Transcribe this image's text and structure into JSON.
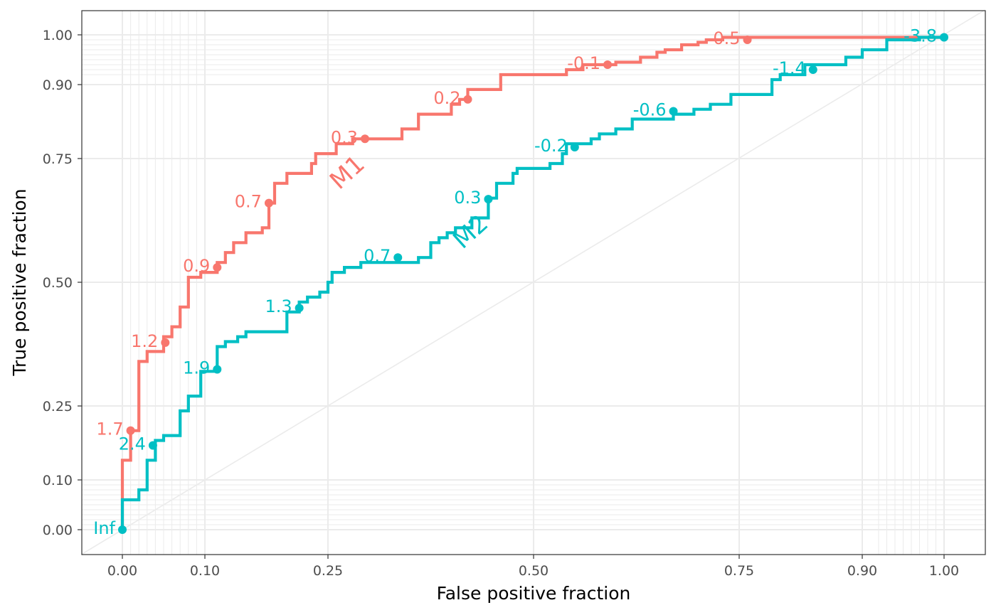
{
  "chart_data": {
    "type": "line",
    "title": "",
    "xlabel": "False positive fraction",
    "ylabel": "True positive fraction",
    "xlim": [
      -0.05,
      1.05
    ],
    "ylim": [
      -0.05,
      1.05
    ],
    "x_scale": "probit",
    "y_scale": "probit",
    "x_ticks": [
      "0.00",
      "0.10",
      "0.25",
      "0.50",
      "0.75",
      "0.90",
      "1.00"
    ],
    "y_ticks": [
      "0.00",
      "0.10",
      "0.25",
      "0.50",
      "0.75",
      "0.90",
      "1.00"
    ],
    "grid": true,
    "reference_line": "diagonal",
    "series": [
      {
        "name": "M1",
        "color": "#F8766D",
        "points": [
          [
            0.0,
            0.0
          ],
          [
            0.0,
            0.14
          ],
          [
            0.01,
            0.14
          ],
          [
            0.01,
            0.2
          ],
          [
            0.02,
            0.2
          ],
          [
            0.02,
            0.34
          ],
          [
            0.03,
            0.34
          ],
          [
            0.03,
            0.36
          ],
          [
            0.05,
            0.36
          ],
          [
            0.05,
            0.39
          ],
          [
            0.06,
            0.39
          ],
          [
            0.06,
            0.41
          ],
          [
            0.07,
            0.41
          ],
          [
            0.07,
            0.45
          ],
          [
            0.08,
            0.45
          ],
          [
            0.08,
            0.51
          ],
          [
            0.095,
            0.51
          ],
          [
            0.095,
            0.52
          ],
          [
            0.115,
            0.52
          ],
          [
            0.115,
            0.54
          ],
          [
            0.125,
            0.54
          ],
          [
            0.125,
            0.56
          ],
          [
            0.135,
            0.56
          ],
          [
            0.135,
            0.58
          ],
          [
            0.15,
            0.58
          ],
          [
            0.15,
            0.6
          ],
          [
            0.17,
            0.6
          ],
          [
            0.17,
            0.61
          ],
          [
            0.178,
            0.61
          ],
          [
            0.178,
            0.66
          ],
          [
            0.185,
            0.66
          ],
          [
            0.185,
            0.7
          ],
          [
            0.2,
            0.7
          ],
          [
            0.2,
            0.72
          ],
          [
            0.23,
            0.72
          ],
          [
            0.23,
            0.74
          ],
          [
            0.235,
            0.74
          ],
          [
            0.235,
            0.76
          ],
          [
            0.26,
            0.76
          ],
          [
            0.26,
            0.78
          ],
          [
            0.28,
            0.78
          ],
          [
            0.28,
            0.79
          ],
          [
            0.34,
            0.79
          ],
          [
            0.34,
            0.81
          ],
          [
            0.36,
            0.81
          ],
          [
            0.36,
            0.84
          ],
          [
            0.4,
            0.84
          ],
          [
            0.4,
            0.86
          ],
          [
            0.41,
            0.86
          ],
          [
            0.41,
            0.87
          ],
          [
            0.42,
            0.87
          ],
          [
            0.42,
            0.89
          ],
          [
            0.46,
            0.89
          ],
          [
            0.46,
            0.92
          ],
          [
            0.54,
            0.92
          ],
          [
            0.54,
            0.93
          ],
          [
            0.56,
            0.93
          ],
          [
            0.56,
            0.94
          ],
          [
            0.6,
            0.94
          ],
          [
            0.6,
            0.945
          ],
          [
            0.63,
            0.945
          ],
          [
            0.63,
            0.955
          ],
          [
            0.65,
            0.955
          ],
          [
            0.65,
            0.965
          ],
          [
            0.66,
            0.965
          ],
          [
            0.66,
            0.97
          ],
          [
            0.68,
            0.97
          ],
          [
            0.68,
            0.98
          ],
          [
            0.7,
            0.98
          ],
          [
            0.7,
            0.985
          ],
          [
            0.71,
            0.985
          ],
          [
            0.71,
            0.99
          ],
          [
            0.73,
            0.99
          ],
          [
            0.73,
            0.995
          ],
          [
            0.91,
            0.995
          ],
          [
            0.91,
            0.995
          ],
          [
            1.0,
            0.995
          ]
        ],
        "cutoffs": [
          {
            "label": "1.7",
            "x": 0.01,
            "y": 0.2
          },
          {
            "label": "1.2",
            "x": 0.052,
            "y": 0.378
          },
          {
            "label": "0.9",
            "x": 0.115,
            "y": 0.53
          },
          {
            "label": "0.7",
            "x": 0.178,
            "y": 0.66
          },
          {
            "label": "0.3",
            "x": 0.295,
            "y": 0.79
          },
          {
            "label": "0.2",
            "x": 0.42,
            "y": 0.87
          },
          {
            "label": "-0.1",
            "x": 0.59,
            "y": 0.94
          },
          {
            "label": "-0.5",
            "x": 0.76,
            "y": 0.99
          }
        ],
        "label_position": {
          "x": 0.28,
          "y": 0.71
        }
      },
      {
        "name": "M2",
        "color": "#00BFC4",
        "points": [
          [
            0.0,
            0.0
          ],
          [
            0.0,
            0.06
          ],
          [
            0.02,
            0.06
          ],
          [
            0.02,
            0.08
          ],
          [
            0.03,
            0.08
          ],
          [
            0.03,
            0.14
          ],
          [
            0.04,
            0.14
          ],
          [
            0.04,
            0.18
          ],
          [
            0.05,
            0.18
          ],
          [
            0.05,
            0.19
          ],
          [
            0.07,
            0.19
          ],
          [
            0.07,
            0.24
          ],
          [
            0.08,
            0.24
          ],
          [
            0.08,
            0.27
          ],
          [
            0.095,
            0.27
          ],
          [
            0.095,
            0.32
          ],
          [
            0.115,
            0.32
          ],
          [
            0.115,
            0.37
          ],
          [
            0.125,
            0.37
          ],
          [
            0.125,
            0.38
          ],
          [
            0.14,
            0.38
          ],
          [
            0.14,
            0.39
          ],
          [
            0.15,
            0.39
          ],
          [
            0.15,
            0.4
          ],
          [
            0.2,
            0.4
          ],
          [
            0.2,
            0.44
          ],
          [
            0.215,
            0.44
          ],
          [
            0.215,
            0.46
          ],
          [
            0.225,
            0.46
          ],
          [
            0.225,
            0.47
          ],
          [
            0.24,
            0.47
          ],
          [
            0.24,
            0.48
          ],
          [
            0.25,
            0.48
          ],
          [
            0.25,
            0.5
          ],
          [
            0.255,
            0.5
          ],
          [
            0.255,
            0.52
          ],
          [
            0.27,
            0.52
          ],
          [
            0.27,
            0.53
          ],
          [
            0.29,
            0.53
          ],
          [
            0.29,
            0.54
          ],
          [
            0.36,
            0.54
          ],
          [
            0.36,
            0.55
          ],
          [
            0.375,
            0.55
          ],
          [
            0.375,
            0.58
          ],
          [
            0.385,
            0.58
          ],
          [
            0.385,
            0.59
          ],
          [
            0.395,
            0.59
          ],
          [
            0.395,
            0.6
          ],
          [
            0.405,
            0.6
          ],
          [
            0.405,
            0.61
          ],
          [
            0.425,
            0.61
          ],
          [
            0.425,
            0.63
          ],
          [
            0.445,
            0.63
          ],
          [
            0.445,
            0.67
          ],
          [
            0.455,
            0.67
          ],
          [
            0.455,
            0.7
          ],
          [
            0.475,
            0.7
          ],
          [
            0.475,
            0.72
          ],
          [
            0.48,
            0.72
          ],
          [
            0.48,
            0.73
          ],
          [
            0.52,
            0.73
          ],
          [
            0.52,
            0.74
          ],
          [
            0.535,
            0.74
          ],
          [
            0.535,
            0.76
          ],
          [
            0.54,
            0.76
          ],
          [
            0.54,
            0.78
          ],
          [
            0.57,
            0.78
          ],
          [
            0.57,
            0.79
          ],
          [
            0.58,
            0.79
          ],
          [
            0.58,
            0.8
          ],
          [
            0.6,
            0.8
          ],
          [
            0.6,
            0.81
          ],
          [
            0.62,
            0.81
          ],
          [
            0.62,
            0.83
          ],
          [
            0.67,
            0.83
          ],
          [
            0.67,
            0.84
          ],
          [
            0.695,
            0.84
          ],
          [
            0.695,
            0.85
          ],
          [
            0.715,
            0.85
          ],
          [
            0.715,
            0.86
          ],
          [
            0.74,
            0.86
          ],
          [
            0.74,
            0.88
          ],
          [
            0.79,
            0.88
          ],
          [
            0.79,
            0.91
          ],
          [
            0.8,
            0.91
          ],
          [
            0.8,
            0.92
          ],
          [
            0.83,
            0.92
          ],
          [
            0.83,
            0.94
          ],
          [
            0.88,
            0.94
          ],
          [
            0.88,
            0.955
          ],
          [
            0.9,
            0.955
          ],
          [
            0.9,
            0.97
          ],
          [
            0.93,
            0.97
          ],
          [
            0.93,
            0.99
          ],
          [
            0.97,
            0.99
          ],
          [
            0.97,
            0.995
          ],
          [
            1.0,
            0.995
          ]
        ],
        "cutoffs": [
          {
            "label": "Inf",
            "x": 0.0,
            "y": 0.0
          },
          {
            "label": "2.4",
            "x": 0.037,
            "y": 0.17
          },
          {
            "label": "1.9",
            "x": 0.115,
            "y": 0.324
          },
          {
            "label": "1.3",
            "x": 0.215,
            "y": 0.448
          },
          {
            "label": "0.7",
            "x": 0.335,
            "y": 0.55
          },
          {
            "label": "0.3",
            "x": 0.445,
            "y": 0.668
          },
          {
            "label": "-0.2",
            "x": 0.55,
            "y": 0.773
          },
          {
            "label": "-0.6",
            "x": 0.67,
            "y": 0.846
          },
          {
            "label": "-1.4",
            "x": 0.84,
            "y": 0.93
          },
          {
            "label": "-3.8",
            "x": 1.0,
            "y": 0.995
          }
        ],
        "label_position": {
          "x": 0.43,
          "y": 0.59
        }
      }
    ]
  }
}
